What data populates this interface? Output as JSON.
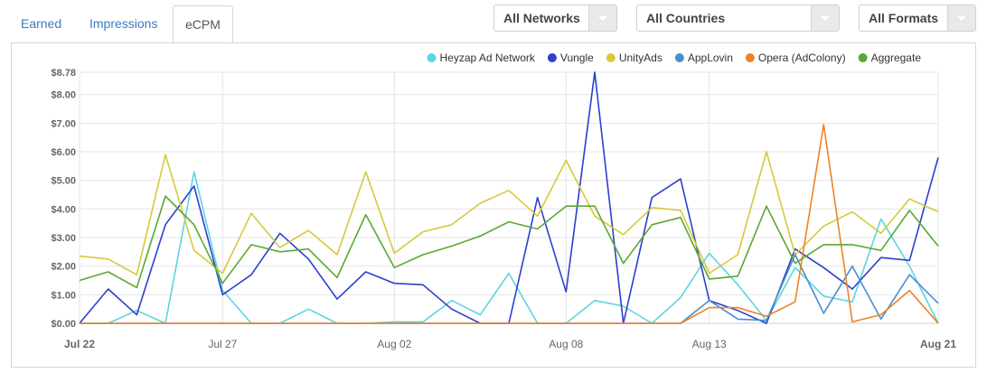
{
  "tabs": [
    {
      "label": "Earned"
    },
    {
      "label": "Impressions"
    },
    {
      "label": "eCPM"
    }
  ],
  "filters": {
    "networks": "All Networks",
    "countries": "All Countries",
    "formats": "All Formats"
  },
  "chart_data": {
    "type": "line",
    "x": [
      "Jul 22",
      "Jul 23",
      "Jul 24",
      "Jul 25",
      "Jul 26",
      "Jul 27",
      "Jul 28",
      "Jul 29",
      "Jul 30",
      "Jul 31",
      "Aug 01",
      "Aug 02",
      "Aug 03",
      "Aug 04",
      "Aug 05",
      "Aug 06",
      "Aug 07",
      "Aug 08",
      "Aug 09",
      "Aug 10",
      "Aug 11",
      "Aug 12",
      "Aug 13",
      "Aug 14",
      "Aug 15",
      "Aug 16",
      "Aug 17",
      "Aug 18",
      "Aug 19",
      "Aug 20",
      "Aug 21"
    ],
    "xticks": [
      "Jul 22",
      "Jul 27",
      "Aug 02",
      "Aug 08",
      "Aug 13",
      "Aug 21"
    ],
    "xtick_index": [
      0,
      5,
      11,
      17,
      22,
      30
    ],
    "xtick_bold": [
      true,
      false,
      false,
      false,
      false,
      true
    ],
    "ylim": [
      0,
      8.78
    ],
    "yticks": [
      0,
      1,
      2,
      3,
      4,
      5,
      6,
      7,
      8,
      8.78
    ],
    "ytick_labels": [
      "$0.00",
      "$1.00",
      "$2.00",
      "$3.00",
      "$4.00",
      "$5.00",
      "$6.00",
      "$7.00",
      "$8.00",
      "$8.78"
    ],
    "grid": true,
    "legend_position": "top-right",
    "series": [
      {
        "name": "Heyzap Ad Network",
        "color": "#5bd5e1",
        "values": [
          0,
          0,
          0.45,
          0,
          5.3,
          1.15,
          0,
          0,
          0.5,
          0,
          0,
          0.05,
          0.05,
          0.8,
          0.3,
          1.75,
          0,
          0,
          0.8,
          0.6,
          0,
          0.9,
          2.45,
          1.35,
          0.1,
          1.95,
          0.95,
          0.75,
          3.65,
          2.0,
          0
        ]
      },
      {
        "name": "Vungle",
        "color": "#2b3fd1",
        "values": [
          0,
          1.2,
          0.3,
          3.45,
          4.8,
          1.0,
          1.7,
          3.15,
          2.25,
          0.85,
          1.8,
          1.4,
          1.35,
          0.5,
          0,
          0,
          4.4,
          1.1,
          8.78,
          0,
          4.4,
          5.05,
          0.8,
          0.45,
          0,
          2.6,
          1.95,
          1.2,
          2.3,
          2.2,
          5.8
        ]
      },
      {
        "name": "UnityAds",
        "color": "#d6c93a",
        "values": [
          2.35,
          2.25,
          1.7,
          5.9,
          2.55,
          1.75,
          3.85,
          2.65,
          3.25,
          2.4,
          5.3,
          2.45,
          3.2,
          3.45,
          4.2,
          4.65,
          3.75,
          5.7,
          3.75,
          3.1,
          4.05,
          3.95,
          1.75,
          2.4,
          6.0,
          2.4,
          3.4,
          3.9,
          3.15,
          4.35,
          3.9
        ]
      },
      {
        "name": "AppLovin",
        "color": "#4a8ed0",
        "values": [
          0,
          0,
          0,
          0,
          0,
          0,
          0,
          0,
          0,
          0,
          0,
          0,
          0,
          0,
          0,
          0,
          0,
          0,
          0,
          0,
          0,
          0,
          0.8,
          0.15,
          0.1,
          2.4,
          0.35,
          2.0,
          0.15,
          1.7,
          0.7
        ]
      },
      {
        "name": "Opera (AdColony)",
        "color": "#ef8224",
        "values": [
          0,
          0,
          0,
          0,
          0,
          0,
          0,
          0,
          0,
          0,
          0,
          0,
          0,
          0,
          0,
          0,
          0,
          0,
          0,
          0,
          0,
          0,
          0.55,
          0.55,
          0.25,
          0.75,
          6.95,
          0.05,
          0.3,
          1.15,
          0
        ]
      },
      {
        "name": "Aggregate",
        "color": "#5aa832",
        "values": [
          1.5,
          1.8,
          1.25,
          4.45,
          3.45,
          1.4,
          2.75,
          2.5,
          2.6,
          1.6,
          3.8,
          1.95,
          2.4,
          2.7,
          3.05,
          3.55,
          3.3,
          4.1,
          4.1,
          2.1,
          3.45,
          3.7,
          1.55,
          1.65,
          4.1,
          2.1,
          2.75,
          2.75,
          2.55,
          3.95,
          2.7
        ]
      }
    ]
  }
}
